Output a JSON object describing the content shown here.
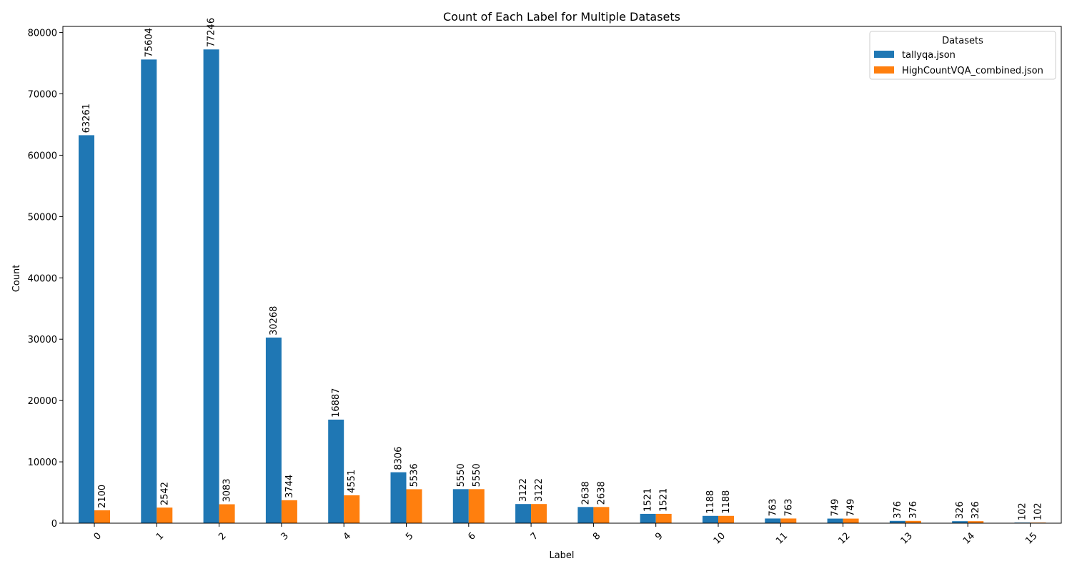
{
  "chart_data": {
    "type": "bar",
    "title": "Count of Each Label for Multiple Datasets",
    "xlabel": "Label",
    "ylabel": "Count",
    "categories": [
      "0",
      "1",
      "2",
      "3",
      "4",
      "5",
      "6",
      "7",
      "8",
      "9",
      "10",
      "11",
      "12",
      "13",
      "14",
      "15"
    ],
    "ylim": [
      0,
      81000
    ],
    "yticks": [
      0,
      10000,
      20000,
      30000,
      40000,
      50000,
      60000,
      70000,
      80000
    ],
    "ytick_labels": [
      "0",
      "10000",
      "20000",
      "30000",
      "40000",
      "50000",
      "60000",
      "70000",
      "80000"
    ],
    "legend": {
      "title": "Datasets",
      "placement": "top-right"
    },
    "grid": false,
    "series": [
      {
        "name": "tallyqa.json",
        "color": "#1f77b4",
        "values": [
          63261,
          75604,
          77246,
          30268,
          16887,
          8306,
          5550,
          3122,
          2638,
          1521,
          1188,
          763,
          749,
          376,
          326,
          102
        ]
      },
      {
        "name": "HighCountVQA_combined.json",
        "color": "#ff7f0e",
        "values": [
          2100,
          2542,
          3083,
          3744,
          4551,
          5536,
          5550,
          3122,
          2638,
          1521,
          1188,
          763,
          749,
          376,
          326,
          102
        ]
      }
    ]
  }
}
